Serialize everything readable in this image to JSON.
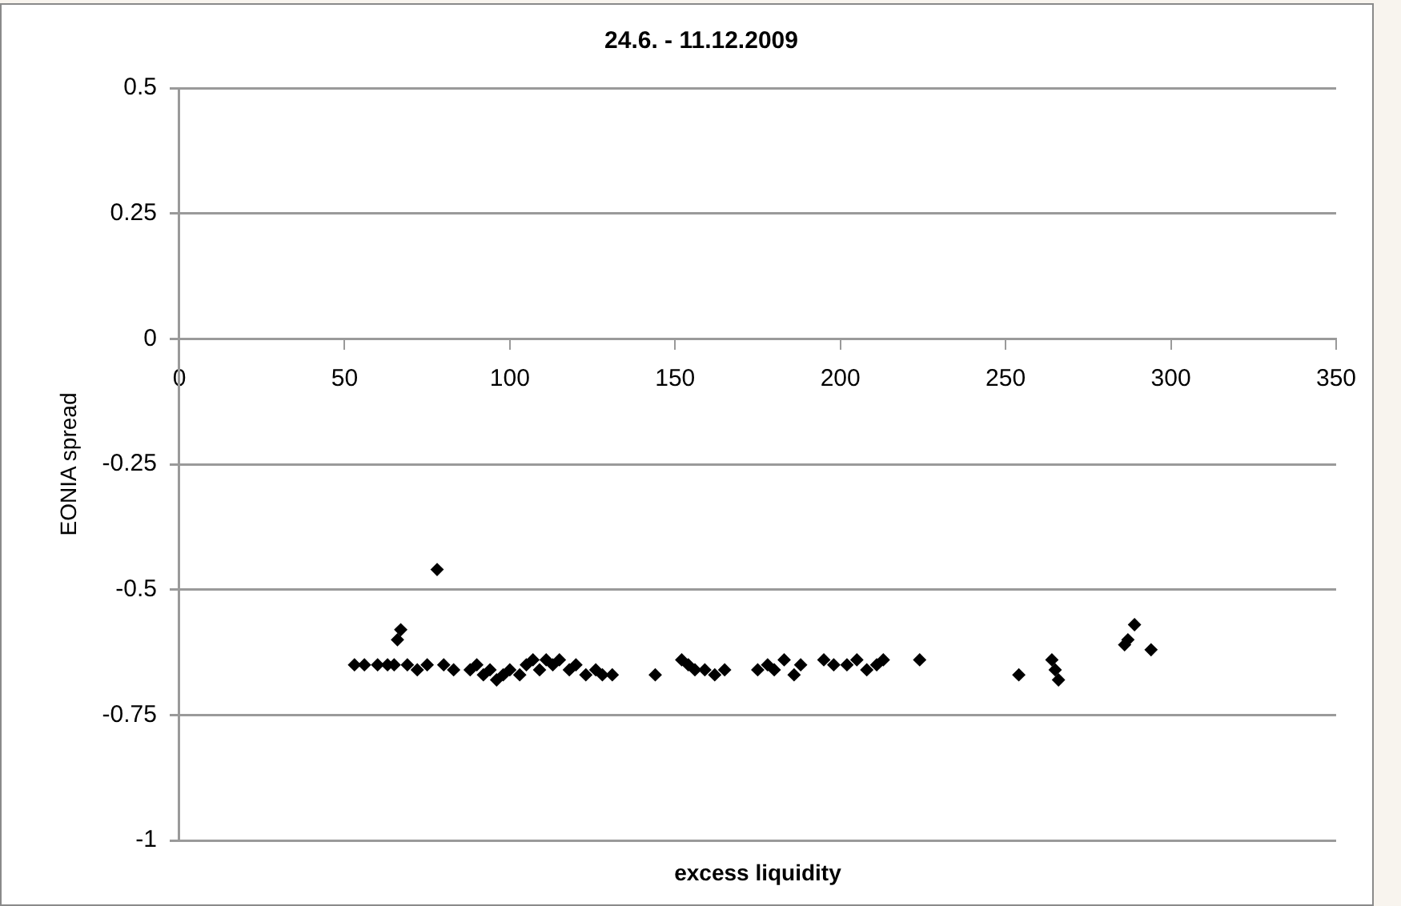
{
  "chart_data": {
    "type": "scatter",
    "title": "24.6. - 11.12.2009",
    "xlabel": "excess liquidity",
    "ylabel": "EONIA spread",
    "xlim": [
      0,
      350
    ],
    "xticks": [
      0,
      50,
      100,
      150,
      200,
      250,
      300,
      350
    ],
    "ylim": [
      -1,
      0.5
    ],
    "yticks": [
      -1,
      -0.75,
      -0.5,
      -0.25,
      0,
      0.25,
      0.5
    ],
    "grid": "y",
    "marker": "diamond",
    "series": [
      {
        "color": "#000000",
        "x": [
          53,
          56,
          60,
          63,
          65,
          66,
          67,
          69,
          72,
          75,
          78,
          80,
          83,
          88,
          90,
          92,
          94,
          96,
          98,
          100,
          103,
          105,
          107,
          109,
          111,
          113,
          115,
          118,
          120,
          123,
          126,
          128,
          131,
          144,
          152,
          154,
          156,
          159,
          162,
          165,
          175,
          178,
          180,
          183,
          186,
          188,
          195,
          198,
          202,
          205,
          208,
          211,
          213,
          224,
          254,
          264,
          265,
          266,
          286,
          287,
          289,
          294
        ],
        "values": [
          -0.65,
          -0.65,
          -0.65,
          -0.65,
          -0.65,
          -0.6,
          -0.58,
          -0.65,
          -0.66,
          -0.65,
          -0.46,
          -0.65,
          -0.66,
          -0.66,
          -0.65,
          -0.67,
          -0.66,
          -0.68,
          -0.67,
          -0.66,
          -0.67,
          -0.65,
          -0.64,
          -0.66,
          -0.64,
          -0.65,
          -0.64,
          -0.66,
          -0.65,
          -0.67,
          -0.66,
          -0.67,
          -0.67,
          -0.67,
          -0.64,
          -0.65,
          -0.66,
          -0.66,
          -0.67,
          -0.66,
          -0.66,
          -0.65,
          -0.66,
          -0.64,
          -0.67,
          -0.65,
          -0.64,
          -0.65,
          -0.65,
          -0.64,
          -0.66,
          -0.65,
          -0.64,
          -0.64,
          -0.67,
          -0.64,
          -0.66,
          -0.68,
          -0.61,
          -0.6,
          -0.57,
          -0.62
        ]
      }
    ]
  }
}
